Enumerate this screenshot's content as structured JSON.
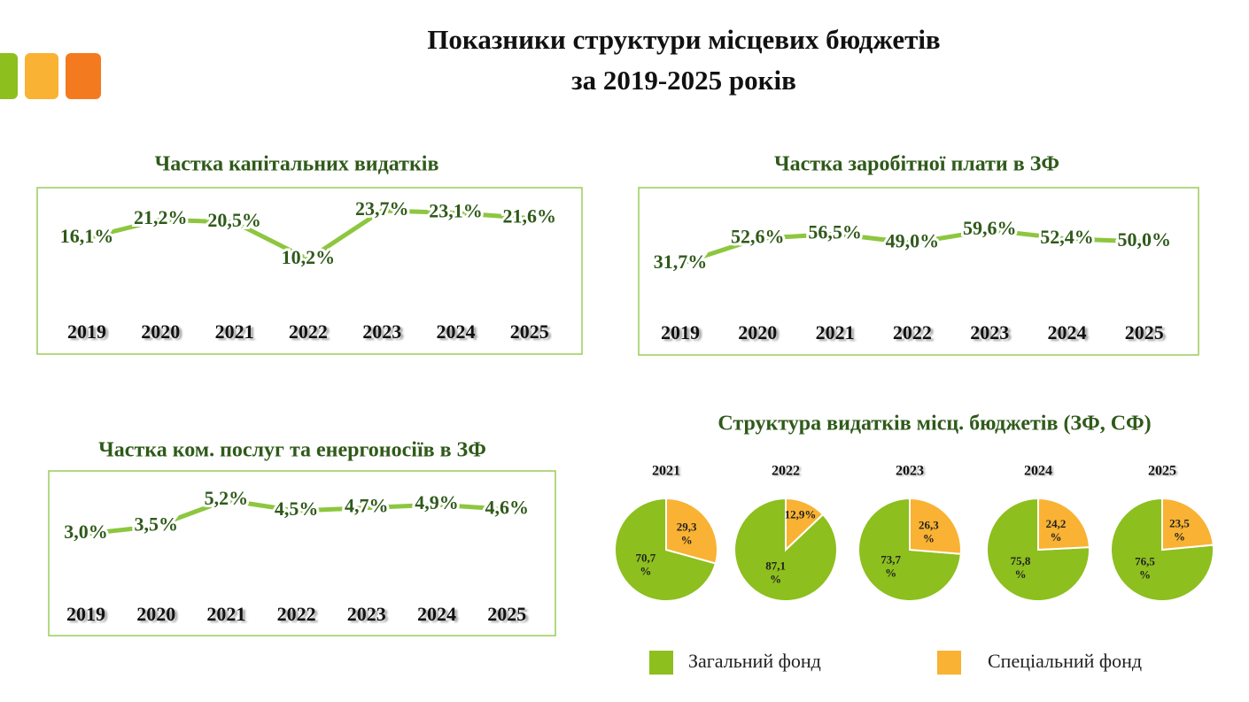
{
  "title_lines": [
    "Показники структури місцевих бюджетів",
    "за 2019-2025 років"
  ],
  "chart_data": [
    {
      "type": "line",
      "title": "Частка капітальних видатків",
      "color": "#8dc63f",
      "categories": [
        "2019",
        "2020",
        "2021",
        "2022",
        "2023",
        "2024",
        "2025"
      ],
      "values": [
        16.1,
        21.2,
        20.5,
        10.2,
        23.7,
        23.1,
        21.6
      ],
      "value_labels": [
        "16,1%",
        "21,2%",
        "20,5%",
        "10,2%",
        "23,7%",
        "23,1%",
        "21,6%"
      ]
    },
    {
      "type": "line",
      "title": "Частка заробітної плати в ЗФ",
      "color": "#8dc63f",
      "categories": [
        "2019",
        "2020",
        "2021",
        "2022",
        "2023",
        "2024",
        "2025"
      ],
      "values": [
        31.7,
        52.6,
        56.5,
        49.0,
        59.6,
        52.4,
        50.0
      ],
      "value_labels": [
        "31,7%",
        "52,6%",
        "56,5%",
        "49,0%",
        "59,6%",
        "52,4%",
        "50,0%"
      ]
    },
    {
      "type": "line",
      "title": "Частка ком. послуг та енергоносіїв в ЗФ",
      "color": "#8dc63f",
      "categories": [
        "2019",
        "2020",
        "2021",
        "2022",
        "2023",
        "2024",
        "2025"
      ],
      "values": [
        3.0,
        3.5,
        5.2,
        4.5,
        4.7,
        4.9,
        4.6
      ],
      "value_labels": [
        "3,0%",
        "3,5%",
        "5,2%",
        "4,5%",
        "4,7%",
        "4,9%",
        "4,6%"
      ]
    },
    {
      "type": "pie",
      "title": "Структура видатків місц. бюджетів (ЗФ, СФ)",
      "categories": [
        "Загальний фонд",
        "Спеціальний фонд"
      ],
      "colors": [
        "#8dbf1e",
        "#f9b233"
      ],
      "series": [
        {
          "name": "2021",
          "values": [
            70.7,
            29.3
          ],
          "value_labels": [
            "70,7 %",
            "29,3 %"
          ]
        },
        {
          "name": "2022",
          "values": [
            87.1,
            12.9
          ],
          "value_labels": [
            "87,1 %",
            "12,9%"
          ]
        },
        {
          "name": "2023",
          "values": [
            73.7,
            26.3
          ],
          "value_labels": [
            "73,7 %",
            "26,3 %"
          ]
        },
        {
          "name": "2024",
          "values": [
            75.8,
            24.2
          ],
          "value_labels": [
            "75,8 %",
            "24,2 %"
          ]
        },
        {
          "name": "2025",
          "values": [
            76.5,
            23.5
          ],
          "value_labels": [
            "76,5 %",
            "23,5 %"
          ]
        }
      ]
    }
  ]
}
